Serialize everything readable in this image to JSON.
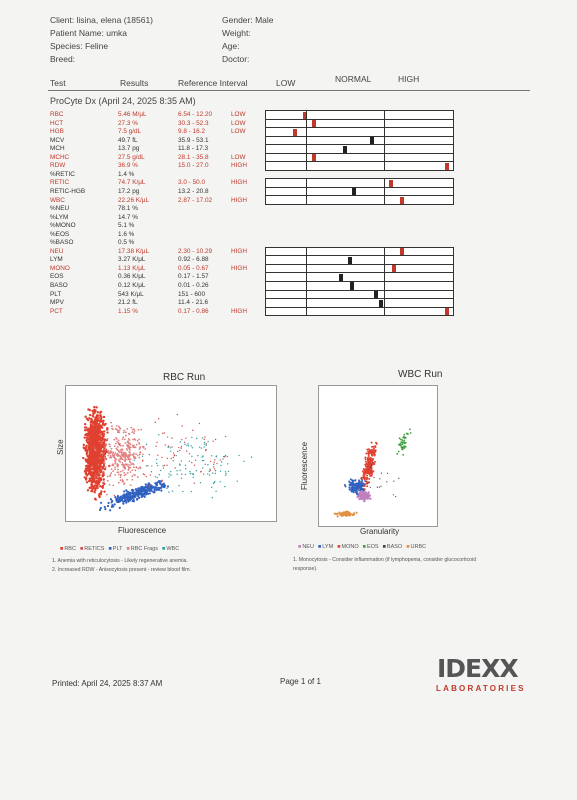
{
  "header": {
    "client": "Client: lisina, elena (18561)",
    "patient": "Patient Name: umka",
    "species": "Species: Feline",
    "breed": "Breed:",
    "gender": "Gender: Male",
    "weight": "Weight:",
    "age": "Age:",
    "doctor": "Doctor:"
  },
  "columns": {
    "test": "Test",
    "results": "Results",
    "reference": "Reference Interval",
    "low": "LOW",
    "normal": "NORMAL",
    "high": "HIGH"
  },
  "section_title": "ProCyte Dx (April 24, 2025 8:35 AM)",
  "rows": [
    {
      "test": "RBC",
      "result": "5.46 M/μL",
      "ref": "6.54 - 12.20",
      "flag": "LOW",
      "abn": true,
      "marker": 0.2
    },
    {
      "test": "HCT",
      "result": "27.3 %",
      "ref": "30.3 - 52.3",
      "flag": "LOW",
      "abn": true,
      "marker": 0.25
    },
    {
      "test": "HGB",
      "result": "7.5 g/dL",
      "ref": "9.8 - 16.2",
      "flag": "LOW",
      "abn": true,
      "marker": 0.15
    },
    {
      "test": "MCV",
      "result": "49.7 fL",
      "ref": "35.9 - 53.1",
      "flag": "",
      "abn": false,
      "marker": 0.57
    },
    {
      "test": "MCH",
      "result": "13.7 pg",
      "ref": "11.8 - 17.3",
      "flag": "",
      "abn": false,
      "marker": 0.42
    },
    {
      "test": "MCHC",
      "result": "27.5 g/dL",
      "ref": "28.1 - 35.8",
      "flag": "LOW",
      "abn": true,
      "marker": 0.25
    },
    {
      "test": "RDW",
      "result": "36.9 %",
      "ref": "15.0 - 27.0",
      "flag": "HIGH",
      "abn": true,
      "marker": 0.98
    },
    {
      "test": "%RETIC",
      "result": "1.4 %",
      "ref": "",
      "flag": "",
      "abn": false,
      "marker": null
    },
    {
      "test": "RETIC",
      "result": "74.7 K/μL",
      "ref": "3.0 - 50.0",
      "flag": "HIGH",
      "abn": true,
      "marker": 0.67
    },
    {
      "test": "RETIC-HGB",
      "result": "17.2 pg",
      "ref": "13.2 - 20.8",
      "flag": "",
      "abn": false,
      "marker": 0.47
    },
    {
      "test": "WBC",
      "result": "22.26 K/μL",
      "ref": "2.87 - 17.02",
      "flag": "HIGH",
      "abn": true,
      "marker": 0.73
    },
    {
      "test": "%NEU",
      "result": "78.1 %",
      "ref": "",
      "flag": "",
      "abn": false,
      "marker": null
    },
    {
      "test": "%LYM",
      "result": "14.7 %",
      "ref": "",
      "flag": "",
      "abn": false,
      "marker": null
    },
    {
      "test": "%MONO",
      "result": "5.1 %",
      "ref": "",
      "flag": "",
      "abn": false,
      "marker": null
    },
    {
      "test": "%EOS",
      "result": "1.6 %",
      "ref": "",
      "flag": "",
      "abn": false,
      "marker": null
    },
    {
      "test": "%BASO",
      "result": "0.5 %",
      "ref": "",
      "flag": "",
      "abn": false,
      "marker": null
    },
    {
      "test": "NEU",
      "result": "17.38 K/μL",
      "ref": "2.30 - 10.29",
      "flag": "HIGH",
      "abn": true,
      "marker": 0.73
    },
    {
      "test": "LYM",
      "result": "3.27 K/μL",
      "ref": "0.92 - 6.88",
      "flag": "",
      "abn": false,
      "marker": 0.45
    },
    {
      "test": "MONO",
      "result": "1.13 K/μL",
      "ref": "0.05 - 0.67",
      "flag": "HIGH",
      "abn": true,
      "marker": 0.69
    },
    {
      "test": "EOS",
      "result": "0.36 K/μL",
      "ref": "0.17 - 1.57",
      "flag": "",
      "abn": false,
      "marker": 0.4
    },
    {
      "test": "BASO",
      "result": "0.12 K/μL",
      "ref": "0.01 - 0.26",
      "flag": "",
      "abn": false,
      "marker": 0.46
    },
    {
      "test": "PLT",
      "result": "543 K/μL",
      "ref": "151 - 600",
      "flag": "",
      "abn": false,
      "marker": 0.59
    },
    {
      "test": "MPV",
      "result": "21.2 fL",
      "ref": "11.4 - 21.6",
      "flag": "",
      "abn": false,
      "marker": 0.62
    },
    {
      "test": "PCT",
      "result": "1.15 %",
      "ref": "0.17 - 0.86",
      "flag": "HIGH",
      "abn": true,
      "marker": 0.98
    }
  ],
  "rbc_plot": {
    "title": "RBC Run",
    "xlabel": "Fluorescence",
    "ylabel": "Size",
    "legend": [
      {
        "label": "RBC",
        "color": "#e04030"
      },
      {
        "label": "RETICS",
        "color": "#d05050"
      },
      {
        "label": "PLT",
        "color": "#3060c0"
      },
      {
        "label": "RBC Frags",
        "color": "#e08080"
      },
      {
        "label": "WBC",
        "color": "#30a0a0"
      }
    ],
    "notes": [
      "1. Anemia with reticulocytosis - Likely regenerative anemia.",
      "2. Increased RDW - Anisocytosis present - review blood film."
    ]
  },
  "wbc_plot": {
    "title": "WBC Run",
    "xlabel": "Granularity",
    "ylabel": "Fluorescence",
    "legend": [
      {
        "label": "NEU",
        "color": "#c080c0"
      },
      {
        "label": "LYM",
        "color": "#3060c0"
      },
      {
        "label": "MONO",
        "color": "#e04030"
      },
      {
        "label": "EOS",
        "color": "#40a040"
      },
      {
        "label": "BASO",
        "color": "#404040"
      },
      {
        "label": "URBC",
        "color": "#e09040"
      }
    ],
    "notes": [
      "1. Monocytosis - Consider inflammation (if lymphopenia, consider glucocorticoid",
      "response)."
    ]
  },
  "colors": {
    "abnormal": "#c0392b",
    "low_marker": "#c0392b",
    "normal_marker": "#222222"
  },
  "footer": {
    "printed": "Printed: April 24, 2025 8:37 AM",
    "page": "Page 1 of 1",
    "logo": "IDEXX",
    "logo_sub": "LABORATORIES"
  }
}
